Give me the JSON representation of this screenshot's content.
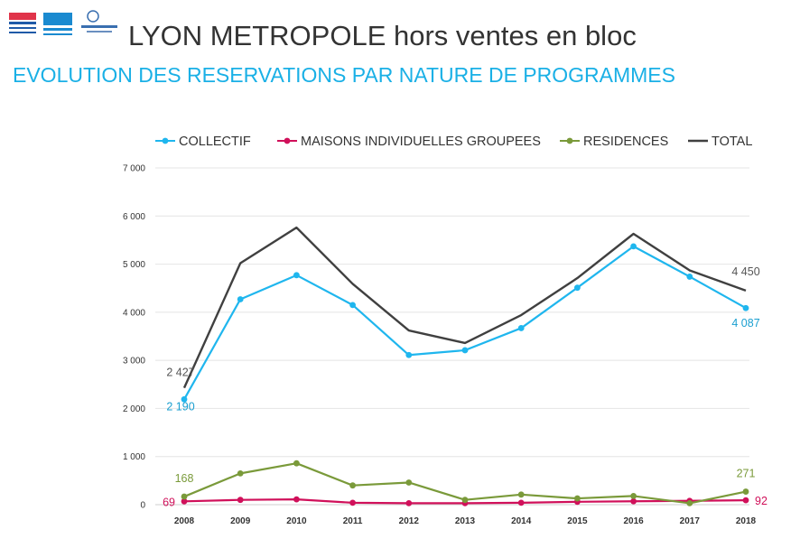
{
  "header": {
    "title": "LYON METROPOLE hors ventes en bloc",
    "subtitle": "EVOLUTION DES RESERVATIONS PAR NATURE DE PROGRAMMES",
    "logos": [
      "Observatoire",
      "FPI",
      "Chambre des notaires du Rhône"
    ]
  },
  "chart_data": {
    "type": "line",
    "x": [
      "2008",
      "2009",
      "2010",
      "2011",
      "2012",
      "2013",
      "2014",
      "2015",
      "2016",
      "2017",
      "2018"
    ],
    "ylim": [
      0,
      7000
    ],
    "yticks": [
      0,
      1000,
      2000,
      3000,
      4000,
      5000,
      6000,
      7000
    ],
    "ytick_labels": [
      "0",
      "1 000",
      "2 000",
      "3 000",
      "4 000",
      "5 000",
      "6 000",
      "7 000"
    ],
    "grid": true,
    "legend_position": "top",
    "series": [
      {
        "name": "COLLECTIF",
        "color": "#1fb6ee",
        "marker": true,
        "values": [
          2190,
          4270,
          4770,
          4150,
          3110,
          3210,
          3670,
          4510,
          5370,
          4740,
          4087
        ]
      },
      {
        "name": "MAISONS INDIVIDUELLES GROUPEES",
        "color": "#d0105a",
        "marker": true,
        "values": [
          69,
          100,
          110,
          40,
          30,
          30,
          40,
          60,
          70,
          80,
          92
        ]
      },
      {
        "name": "RESIDENCES",
        "color": "#7a9a3a",
        "marker": true,
        "values": [
          168,
          650,
          860,
          400,
          460,
          100,
          210,
          130,
          180,
          30,
          271
        ]
      },
      {
        "name": "TOTAL",
        "color": "#404040",
        "marker": false,
        "values": [
          2427,
          5020,
          5760,
          4590,
          3620,
          3360,
          3940,
          4710,
          5630,
          4870,
          4450
        ]
      }
    ],
    "data_labels": [
      {
        "text": "2 427",
        "series": 3,
        "index": 0,
        "color": "#555555"
      },
      {
        "text": "2 190",
        "series": 0,
        "index": 0,
        "color": "#1a9fd0"
      },
      {
        "text": "4 450",
        "series": 3,
        "index": 10,
        "color": "#555555"
      },
      {
        "text": "4 087",
        "series": 0,
        "index": 10,
        "color": "#1a9fd0"
      },
      {
        "text": "168",
        "series": 2,
        "index": 0,
        "color": "#7a9a3a"
      },
      {
        "text": "69",
        "series": 1,
        "index": 0,
        "color": "#d0105a"
      },
      {
        "text": "271",
        "series": 2,
        "index": 10,
        "color": "#7a9a3a"
      },
      {
        "text": "92",
        "series": 1,
        "index": 10,
        "color": "#d0105a"
      }
    ]
  }
}
